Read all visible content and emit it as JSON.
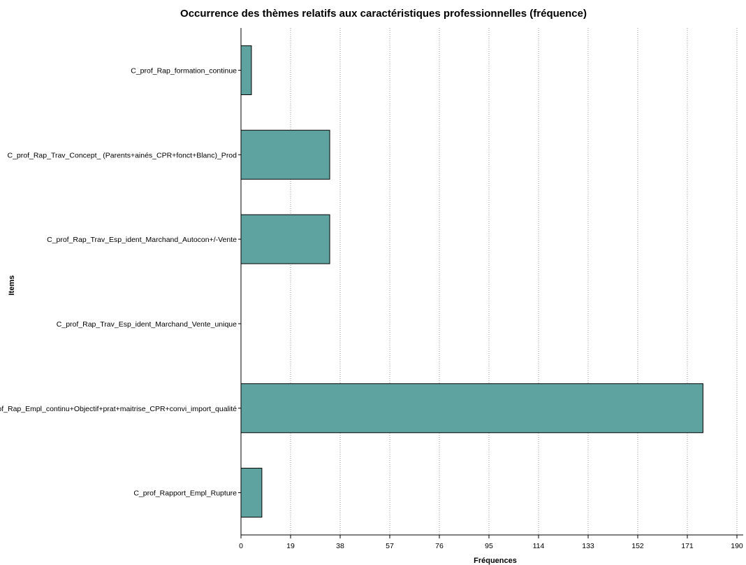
{
  "chart_data": {
    "type": "bar",
    "orientation": "horizontal",
    "title": "Occurrence des thèmes relatifs aux caractéristiques professionnelles (fréquence)",
    "xlabel": "Fréquences",
    "ylabel": "Items",
    "categories": [
      "C_prof_Rap_formation_continue",
      "C_prof_Rap_Trav_Concept_ (Parents+ainés_CPR+fonct+Blanc)_Prod",
      "C_prof_Rap_Trav_Esp_ident_Marchand_Autocon+/-Vente",
      "C_prof_Rap_Trav_Esp_ident_Marchand_Vente_unique",
      "C_prof_Rap_Empl_continu+Objectif+prat+maitrise_CPR+convi_import_qualité",
      "C_prof_Rapport_Empl_Rupture"
    ],
    "values": [
      4,
      34,
      34,
      0,
      177,
      8
    ],
    "xlim": [
      0,
      190
    ],
    "xticks": [
      "0",
      "19",
      "38",
      "57",
      "76",
      "95",
      "114",
      "133",
      "152",
      "171",
      "190"
    ],
    "grid": "vertical-dotted",
    "bar_color": "#5fa3a0",
    "legend": "none"
  }
}
